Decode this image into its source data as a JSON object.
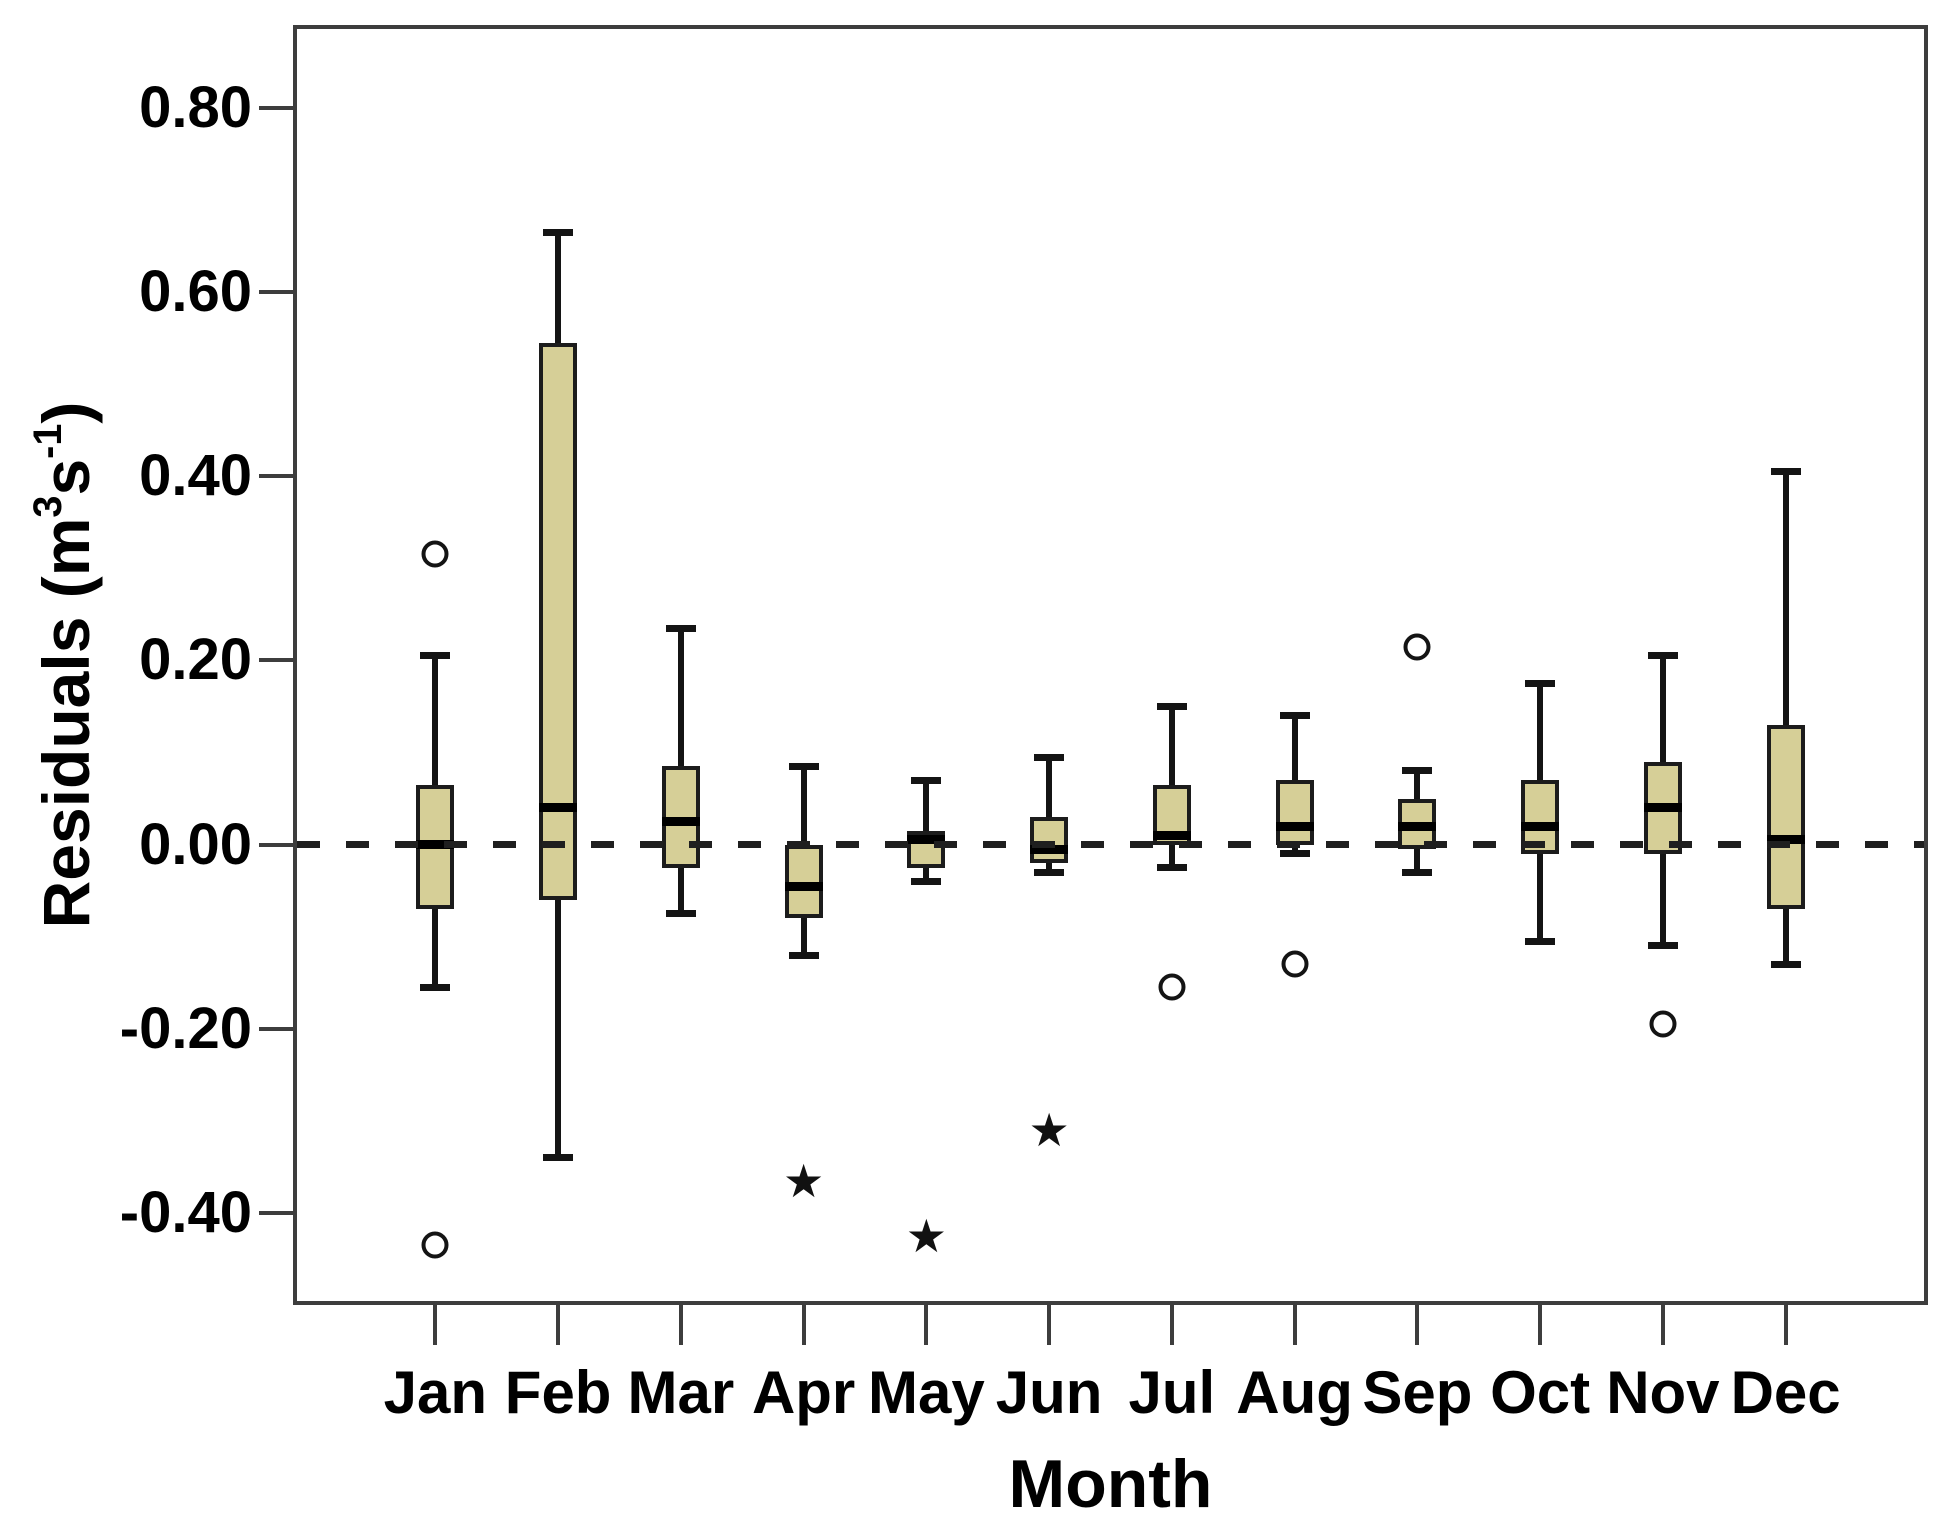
{
  "chart_data": {
    "type": "boxplot",
    "title": "",
    "xlabel": "Month",
    "ylabel_text": "Residuals (m3s-1)",
    "ylabel_segments": [
      {
        "text": "Residuals (m",
        "sup": false
      },
      {
        "text": "3",
        "sup": true
      },
      {
        "text": "s",
        "sup": false
      },
      {
        "text": "-1",
        "sup": true
      },
      {
        "text": ")",
        "sup": false
      }
    ],
    "categories": [
      "Jan",
      "Feb",
      "Mar",
      "Apr",
      "May",
      "Jun",
      "Jul",
      "Aug",
      "Sep",
      "Oct",
      "Nov",
      "Dec"
    ],
    "yticks": [
      {
        "label": "0.80",
        "value": 0.8
      },
      {
        "label": "0.60",
        "value": 0.6
      },
      {
        "label": "0.40",
        "value": 0.4
      },
      {
        "label": "0.20",
        "value": 0.2
      },
      {
        "label": "0.00",
        "value": 0.0
      },
      {
        "label": "-0.20",
        "value": -0.2
      },
      {
        "label": "-0.40",
        "value": -0.4
      }
    ],
    "ylim": [
      -0.5,
      0.89
    ],
    "grid": "off",
    "legend": "none",
    "reference_line": {
      "value": 0.0,
      "style": "dashed"
    },
    "series": [
      {
        "month": "Jan",
        "whisker_low": -0.155,
        "q1": -0.07,
        "median": 0.0,
        "q3": 0.065,
        "whisker_high": 0.205,
        "outliers": [
          {
            "value": 0.315,
            "type": "circle"
          },
          {
            "value": -0.435,
            "type": "circle"
          }
        ]
      },
      {
        "month": "Feb",
        "whisker_low": -0.34,
        "q1": -0.06,
        "median": 0.04,
        "q3": 0.545,
        "whisker_high": 0.665,
        "outliers": []
      },
      {
        "month": "Mar",
        "whisker_low": -0.075,
        "q1": -0.025,
        "median": 0.025,
        "q3": 0.085,
        "whisker_high": 0.235,
        "outliers": []
      },
      {
        "month": "Apr",
        "whisker_low": -0.12,
        "q1": -0.08,
        "median": -0.045,
        "q3": 0.0,
        "whisker_high": 0.085,
        "outliers": [
          {
            "value": -0.365,
            "type": "star"
          }
        ]
      },
      {
        "month": "May",
        "whisker_low": -0.04,
        "q1": -0.025,
        "median": 0.005,
        "q3": 0.015,
        "whisker_high": 0.07,
        "outliers": [
          {
            "value": -0.425,
            "type": "star"
          }
        ]
      },
      {
        "month": "Jun",
        "whisker_low": -0.03,
        "q1": -0.02,
        "median": -0.005,
        "q3": 0.03,
        "whisker_high": 0.095,
        "outliers": [
          {
            "value": -0.31,
            "type": "star"
          }
        ]
      },
      {
        "month": "Jul",
        "whisker_low": -0.025,
        "q1": 0.0,
        "median": 0.01,
        "q3": 0.065,
        "whisker_high": 0.15,
        "outliers": [
          {
            "value": -0.155,
            "type": "circle"
          }
        ]
      },
      {
        "month": "Aug",
        "whisker_low": -0.01,
        "q1": 0.0,
        "median": 0.02,
        "q3": 0.07,
        "whisker_high": 0.14,
        "outliers": [
          {
            "value": -0.13,
            "type": "circle"
          }
        ]
      },
      {
        "month": "Sep",
        "whisker_low": -0.03,
        "q1": -0.005,
        "median": 0.02,
        "q3": 0.05,
        "whisker_high": 0.08,
        "outliers": [
          {
            "value": 0.215,
            "type": "circle"
          }
        ]
      },
      {
        "month": "Oct",
        "whisker_low": -0.105,
        "q1": -0.01,
        "median": 0.02,
        "q3": 0.07,
        "whisker_high": 0.175,
        "outliers": []
      },
      {
        "month": "Nov",
        "whisker_low": -0.11,
        "q1": -0.01,
        "median": 0.04,
        "q3": 0.09,
        "whisker_high": 0.205,
        "outliers": [
          {
            "value": -0.195,
            "type": "circle"
          }
        ]
      },
      {
        "month": "Dec",
        "whisker_low": -0.13,
        "q1": -0.07,
        "median": 0.005,
        "q3": 0.13,
        "whisker_high": 0.405,
        "outliers": []
      }
    ],
    "markers": {
      "outlier": "circle-icon",
      "extreme": "star-icon",
      "star_glyph": "★"
    },
    "colors": {
      "box_fill": "#d6cf97",
      "box_border": "#1c1c1c",
      "median": "#000000",
      "whisker": "#141414",
      "frame": "#3d3d3d",
      "dashed_line": "#1f1f1f",
      "text": "#000000",
      "background": "#ffffff"
    }
  }
}
